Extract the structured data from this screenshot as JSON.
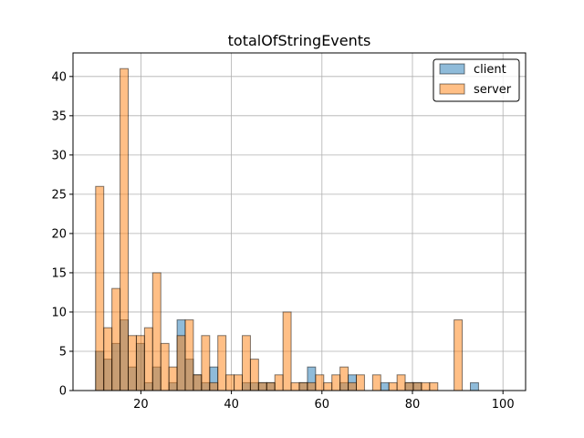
{
  "chart_data": {
    "type": "histogram",
    "title": "totalOfStringEvents",
    "xlabel": "",
    "ylabel": "",
    "xlim": [
      5,
      105
    ],
    "ylim": [
      0,
      43
    ],
    "xticks": [
      20,
      40,
      60,
      80,
      100
    ],
    "yticks": [
      0,
      5,
      10,
      15,
      20,
      25,
      30,
      35,
      40
    ],
    "grid": true,
    "legend_position": "top-right",
    "bin_edges": [
      10,
      11.8,
      13.6,
      15.4,
      17.2,
      19,
      20.8,
      22.6,
      24.4,
      26.2,
      28,
      29.8,
      31.6,
      33.4,
      35.2,
      37,
      38.8,
      40.6,
      42.4,
      44.2,
      46,
      47.8,
      49.6,
      51.4,
      53.2,
      55,
      56.8,
      58.6,
      60.4,
      62.2,
      64,
      65.8,
      67.6,
      69.4,
      71.2,
      73,
      74.8,
      76.6,
      78.4,
      80.2,
      82,
      83.8,
      85.6,
      87.4,
      89.2,
      91,
      92.8,
      94.6,
      96.4,
      98.2,
      100
    ],
    "series": [
      {
        "name": "client",
        "color": "#1f77b4",
        "values": [
          5,
          4,
          6,
          9,
          3,
          6,
          1,
          3,
          0,
          1,
          9,
          4,
          2,
          1,
          3,
          0,
          0,
          0,
          1,
          1,
          1,
          1,
          0,
          0,
          0,
          1,
          3,
          0,
          0,
          0,
          1,
          2,
          0,
          0,
          0,
          1,
          0,
          0,
          1,
          1,
          0,
          0,
          0,
          0,
          0,
          0,
          1,
          0,
          0,
          0
        ]
      },
      {
        "name": "server",
        "color": "#ff7f0e",
        "values": [
          26,
          8,
          13,
          41,
          7,
          7,
          8,
          15,
          6,
          3,
          7,
          9,
          2,
          7,
          1,
          7,
          2,
          2,
          7,
          4,
          1,
          1,
          2,
          10,
          1,
          1,
          1,
          2,
          1,
          2,
          3,
          1,
          2,
          0,
          2,
          0,
          1,
          2,
          1,
          1,
          1,
          1,
          0,
          0,
          9,
          0,
          0,
          0,
          0,
          0
        ]
      }
    ]
  }
}
